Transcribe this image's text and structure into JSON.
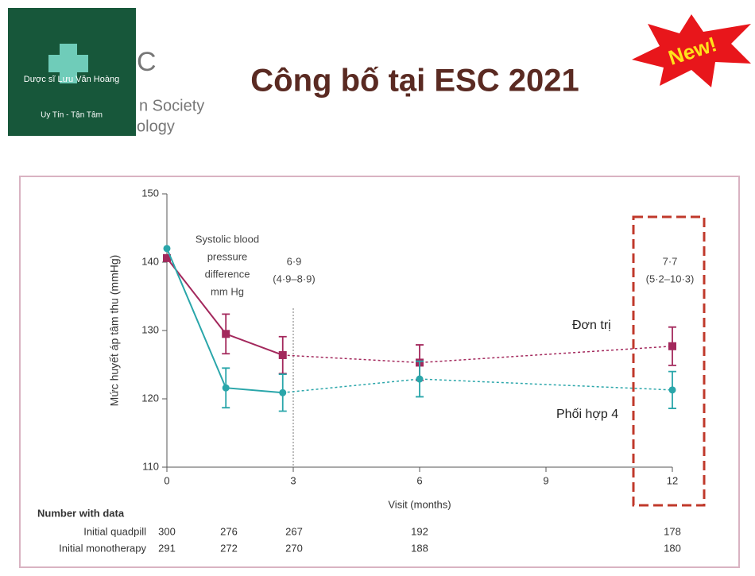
{
  "header": {
    "title": "Công bố tại ESC 2021",
    "logo_name": "Dược sĩ Lưu Văn Hoàng",
    "logo_slogan": "Uy Tín - Tận Tâm",
    "society_partial": [
      "C",
      "n Society",
      "ology"
    ],
    "badge": "New!"
  },
  "chart_data": {
    "type": "line",
    "x": [
      0,
      1.4,
      2.75,
      6,
      12
    ],
    "series": [
      {
        "name": "Đơn trị",
        "color": "#a3285c",
        "values": [
          140.6,
          129.5,
          126.4,
          125.3,
          127.7
        ],
        "errors": [
          null,
          2.9,
          2.7,
          2.6,
          2.8
        ]
      },
      {
        "name": "Phối hợp 4",
        "color": "#2aa6aa",
        "values": [
          142,
          121.6,
          120.9,
          122.9,
          121.3
        ],
        "errors": [
          null,
          2.9,
          2.7,
          2.6,
          2.7
        ]
      }
    ],
    "xlim": [
      0,
      12
    ],
    "xticks": [
      0,
      3,
      6,
      9,
      12
    ],
    "ylim": [
      110,
      150
    ],
    "yticks": [
      110,
      120,
      130,
      140,
      150
    ],
    "xlabel": "Visit (months)",
    "ylabel": "Mức huyết áp tâm thu (mmHg)",
    "bp_diff_label": [
      "Systolic blood",
      "pressure",
      "difference",
      "mm Hg"
    ],
    "diff_3m": [
      "6·9",
      "(4·9–8·9)"
    ],
    "diff_12m": [
      "7·7",
      "(5·2–10·3)"
    ]
  },
  "table": {
    "title": "Number with data",
    "rows": [
      {
        "label": "Initial quadpill",
        "counts": [
          "300",
          "276",
          "267",
          "192",
          "178"
        ]
      },
      {
        "label": "Initial monotherapy",
        "counts": [
          "291",
          "272",
          "270",
          "188",
          "180"
        ]
      }
    ]
  }
}
